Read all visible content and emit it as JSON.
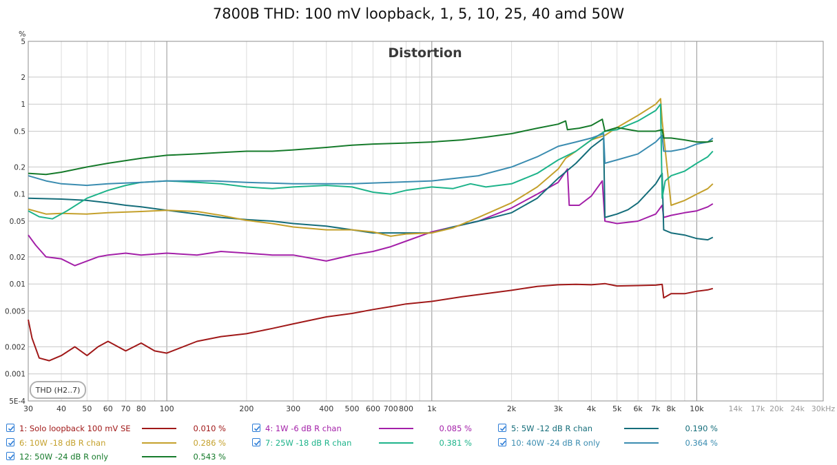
{
  "page": {
    "title": "7800B THD: 100 mV loopback, 1, 5, 10, 25, 40 amd 50W"
  },
  "chart_data": {
    "type": "line",
    "title": "Distortion",
    "y_unit": "%",
    "x_unit": "Hz",
    "x_scale": "log",
    "y_scale": "log",
    "xlim": [
      30,
      30000
    ],
    "ylim": [
      0.0005,
      5
    ],
    "grid": true,
    "x_ticks": [
      {
        "v": 30,
        "label": "30"
      },
      {
        "v": 40,
        "label": "40"
      },
      {
        "v": 50,
        "label": "50"
      },
      {
        "v": 60,
        "label": "60"
      },
      {
        "v": 70,
        "label": "70"
      },
      {
        "v": 80,
        "label": "80"
      },
      {
        "v": 100,
        "label": "100"
      },
      {
        "v": 200,
        "label": "200"
      },
      {
        "v": 300,
        "label": "300"
      },
      {
        "v": 400,
        "label": "400"
      },
      {
        "v": 500,
        "label": "500"
      },
      {
        "v": 600,
        "label": "600"
      },
      {
        "v": 700,
        "label": "700"
      },
      {
        "v": 800,
        "label": "800"
      },
      {
        "v": 1000,
        "label": "1k"
      },
      {
        "v": 2000,
        "label": "2k"
      },
      {
        "v": 3000,
        "label": "3k"
      },
      {
        "v": 4000,
        "label": "4k"
      },
      {
        "v": 5000,
        "label": "5k"
      },
      {
        "v": 6000,
        "label": "6k"
      },
      {
        "v": 7000,
        "label": "7k"
      },
      {
        "v": 8000,
        "label": "8k"
      },
      {
        "v": 10000,
        "label": "10k"
      },
      {
        "v": 14000,
        "label": "14k"
      },
      {
        "v": 17000,
        "label": "17k"
      },
      {
        "v": 20000,
        "label": "20k"
      },
      {
        "v": 24000,
        "label": "24k"
      },
      {
        "v": 30000,
        "label": "30kHz"
      }
    ],
    "y_ticks": [
      {
        "v": 5,
        "label": "5"
      },
      {
        "v": 2,
        "label": "2"
      },
      {
        "v": 1,
        "label": "1"
      },
      {
        "v": 0.5,
        "label": "0.5"
      },
      {
        "v": 0.2,
        "label": "0.2"
      },
      {
        "v": 0.1,
        "label": "0.1"
      },
      {
        "v": 0.05,
        "label": "0.05"
      },
      {
        "v": 0.02,
        "label": "0.02"
      },
      {
        "v": 0.01,
        "label": "0.01"
      },
      {
        "v": 0.005,
        "label": "0.005"
      },
      {
        "v": 0.002,
        "label": "0.002"
      },
      {
        "v": 0.001,
        "label": "0.001"
      },
      {
        "v": 0.0005,
        "label": "5E-4"
      }
    ],
    "badge": "THD (H2..7)",
    "series": [
      {
        "name": "1: Solo loopback 100 mV SE",
        "value": "0.010 %",
        "color": "#a01818",
        "points": [
          [
            30,
            0.004
          ],
          [
            31,
            0.0025
          ],
          [
            33,
            0.0015
          ],
          [
            36,
            0.0014
          ],
          [
            40,
            0.0016
          ],
          [
            45,
            0.002
          ],
          [
            50,
            0.0016
          ],
          [
            55,
            0.002
          ],
          [
            60,
            0.0023
          ],
          [
            70,
            0.0018
          ],
          [
            80,
            0.0022
          ],
          [
            90,
            0.0018
          ],
          [
            100,
            0.0017
          ],
          [
            130,
            0.0023
          ],
          [
            160,
            0.0026
          ],
          [
            200,
            0.0028
          ],
          [
            250,
            0.0032
          ],
          [
            300,
            0.0036
          ],
          [
            400,
            0.0043
          ],
          [
            500,
            0.0047
          ],
          [
            600,
            0.0052
          ],
          [
            700,
            0.0056
          ],
          [
            800,
            0.006
          ],
          [
            1000,
            0.0064
          ],
          [
            1300,
            0.0072
          ],
          [
            1600,
            0.0078
          ],
          [
            2000,
            0.0085
          ],
          [
            2500,
            0.0094
          ],
          [
            3000,
            0.0098
          ],
          [
            3500,
            0.0099
          ],
          [
            4000,
            0.0098
          ],
          [
            4500,
            0.0101
          ],
          [
            5000,
            0.0095
          ],
          [
            6000,
            0.0096
          ],
          [
            7000,
            0.0097
          ],
          [
            7400,
            0.0099
          ],
          [
            7500,
            0.007
          ],
          [
            8000,
            0.0078
          ],
          [
            9000,
            0.0078
          ],
          [
            10000,
            0.0083
          ],
          [
            11000,
            0.0086
          ],
          [
            11500,
            0.0089
          ]
        ]
      },
      {
        "name": "4: 1W -6 dB R chan",
        "value": "0.085 %",
        "color": "#a31fa8",
        "points": [
          [
            30,
            0.035
          ],
          [
            32,
            0.027
          ],
          [
            35,
            0.02
          ],
          [
            40,
            0.019
          ],
          [
            45,
            0.016
          ],
          [
            50,
            0.018
          ],
          [
            55,
            0.02
          ],
          [
            60,
            0.021
          ],
          [
            70,
            0.022
          ],
          [
            80,
            0.021
          ],
          [
            100,
            0.022
          ],
          [
            130,
            0.021
          ],
          [
            160,
            0.023
          ],
          [
            200,
            0.022
          ],
          [
            250,
            0.021
          ],
          [
            300,
            0.021
          ],
          [
            400,
            0.018
          ],
          [
            500,
            0.021
          ],
          [
            600,
            0.023
          ],
          [
            700,
            0.026
          ],
          [
            800,
            0.03
          ],
          [
            1000,
            0.038
          ],
          [
            1200,
            0.043
          ],
          [
            1500,
            0.05
          ],
          [
            2000,
            0.07
          ],
          [
            2500,
            0.1
          ],
          [
            3000,
            0.135
          ],
          [
            3250,
            0.19
          ],
          [
            3300,
            0.075
          ],
          [
            3600,
            0.075
          ],
          [
            4000,
            0.095
          ],
          [
            4400,
            0.14
          ],
          [
            4500,
            0.05
          ],
          [
            5000,
            0.047
          ],
          [
            6000,
            0.05
          ],
          [
            7000,
            0.06
          ],
          [
            7400,
            0.075
          ],
          [
            7500,
            0.055
          ],
          [
            8000,
            0.058
          ],
          [
            9000,
            0.062
          ],
          [
            10000,
            0.065
          ],
          [
            11000,
            0.072
          ],
          [
            11500,
            0.078
          ]
        ]
      },
      {
        "name": "5: 5W -12 dB  R chan",
        "value": "0.190 %",
        "color": "#146d7a",
        "points": [
          [
            30,
            0.09
          ],
          [
            40,
            0.088
          ],
          [
            50,
            0.085
          ],
          [
            60,
            0.08
          ],
          [
            70,
            0.075
          ],
          [
            80,
            0.072
          ],
          [
            100,
            0.066
          ],
          [
            130,
            0.06
          ],
          [
            160,
            0.055
          ],
          [
            200,
            0.052
          ],
          [
            250,
            0.05
          ],
          [
            300,
            0.047
          ],
          [
            400,
            0.044
          ],
          [
            500,
            0.04
          ],
          [
            600,
            0.037
          ],
          [
            800,
            0.037
          ],
          [
            1000,
            0.037
          ],
          [
            1200,
            0.043
          ],
          [
            1500,
            0.05
          ],
          [
            2000,
            0.062
          ],
          [
            2500,
            0.09
          ],
          [
            3000,
            0.15
          ],
          [
            3500,
            0.22
          ],
          [
            4000,
            0.33
          ],
          [
            4450,
            0.42
          ],
          [
            4500,
            0.055
          ],
          [
            5000,
            0.06
          ],
          [
            5500,
            0.067
          ],
          [
            6000,
            0.08
          ],
          [
            7000,
            0.13
          ],
          [
            7400,
            0.17
          ],
          [
            7500,
            0.04
          ],
          [
            8000,
            0.037
          ],
          [
            9000,
            0.035
          ],
          [
            10000,
            0.032
          ],
          [
            11000,
            0.031
          ],
          [
            11500,
            0.033
          ]
        ]
      },
      {
        "name": "6: 10W -18 dB R chan",
        "value": "0.286 %",
        "color": "#c4a02b",
        "points": [
          [
            30,
            0.068
          ],
          [
            35,
            0.06
          ],
          [
            40,
            0.061
          ],
          [
            50,
            0.06
          ],
          [
            60,
            0.062
          ],
          [
            80,
            0.064
          ],
          [
            100,
            0.066
          ],
          [
            130,
            0.064
          ],
          [
            160,
            0.058
          ],
          [
            200,
            0.051
          ],
          [
            250,
            0.047
          ],
          [
            300,
            0.043
          ],
          [
            400,
            0.04
          ],
          [
            500,
            0.04
          ],
          [
            600,
            0.038
          ],
          [
            700,
            0.034
          ],
          [
            800,
            0.036
          ],
          [
            1000,
            0.037
          ],
          [
            1200,
            0.042
          ],
          [
            1500,
            0.055
          ],
          [
            2000,
            0.08
          ],
          [
            2500,
            0.12
          ],
          [
            3000,
            0.19
          ],
          [
            3200,
            0.25
          ],
          [
            3500,
            0.3
          ],
          [
            4000,
            0.4
          ],
          [
            4500,
            0.45
          ],
          [
            5000,
            0.55
          ],
          [
            6000,
            0.75
          ],
          [
            7000,
            1.0
          ],
          [
            7300,
            1.15
          ],
          [
            7400,
            0.65
          ],
          [
            8000,
            0.075
          ],
          [
            9000,
            0.085
          ],
          [
            10000,
            0.1
          ],
          [
            11000,
            0.115
          ],
          [
            11500,
            0.13
          ]
        ]
      },
      {
        "name": "7: 25W -18 dB  R chan",
        "value": "0.381 %",
        "color": "#1db38a",
        "points": [
          [
            30,
            0.065
          ],
          [
            33,
            0.056
          ],
          [
            37,
            0.053
          ],
          [
            42,
            0.065
          ],
          [
            50,
            0.09
          ],
          [
            60,
            0.11
          ],
          [
            70,
            0.125
          ],
          [
            80,
            0.135
          ],
          [
            100,
            0.14
          ],
          [
            130,
            0.135
          ],
          [
            160,
            0.13
          ],
          [
            200,
            0.12
          ],
          [
            250,
            0.115
          ],
          [
            300,
            0.12
          ],
          [
            400,
            0.125
          ],
          [
            500,
            0.12
          ],
          [
            600,
            0.105
          ],
          [
            700,
            0.1
          ],
          [
            800,
            0.11
          ],
          [
            1000,
            0.12
          ],
          [
            1200,
            0.115
          ],
          [
            1400,
            0.13
          ],
          [
            1600,
            0.12
          ],
          [
            2000,
            0.13
          ],
          [
            2500,
            0.17
          ],
          [
            3000,
            0.24
          ],
          [
            3500,
            0.3
          ],
          [
            4000,
            0.4
          ],
          [
            4500,
            0.5
          ],
          [
            5000,
            0.52
          ],
          [
            6000,
            0.65
          ],
          [
            7000,
            0.85
          ],
          [
            7300,
            1.0
          ],
          [
            7400,
            0.09
          ],
          [
            7600,
            0.14
          ],
          [
            8000,
            0.16
          ],
          [
            9000,
            0.18
          ],
          [
            10000,
            0.22
          ],
          [
            11000,
            0.26
          ],
          [
            11500,
            0.3
          ]
        ]
      },
      {
        "name": "10: 40W -24 dB R only",
        "value": "0.364 %",
        "color": "#3a8cb0",
        "points": [
          [
            30,
            0.16
          ],
          [
            35,
            0.14
          ],
          [
            40,
            0.13
          ],
          [
            50,
            0.125
          ],
          [
            60,
            0.13
          ],
          [
            80,
            0.135
          ],
          [
            100,
            0.14
          ],
          [
            150,
            0.14
          ],
          [
            200,
            0.135
          ],
          [
            300,
            0.13
          ],
          [
            500,
            0.13
          ],
          [
            700,
            0.135
          ],
          [
            1000,
            0.14
          ],
          [
            1500,
            0.16
          ],
          [
            2000,
            0.2
          ],
          [
            2500,
            0.26
          ],
          [
            3000,
            0.34
          ],
          [
            3500,
            0.38
          ],
          [
            4000,
            0.42
          ],
          [
            4450,
            0.47
          ],
          [
            4500,
            0.22
          ],
          [
            5000,
            0.24
          ],
          [
            6000,
            0.28
          ],
          [
            7000,
            0.38
          ],
          [
            7400,
            0.45
          ],
          [
            7500,
            0.3
          ],
          [
            8000,
            0.3
          ],
          [
            9000,
            0.32
          ],
          [
            10000,
            0.36
          ],
          [
            11000,
            0.38
          ],
          [
            11500,
            0.42
          ]
        ]
      },
      {
        "name": "12: 50W -24 dB R only",
        "value": "0.543 %",
        "color": "#157a2a",
        "points": [
          [
            30,
            0.17
          ],
          [
            35,
            0.165
          ],
          [
            40,
            0.175
          ],
          [
            50,
            0.2
          ],
          [
            60,
            0.22
          ],
          [
            80,
            0.25
          ],
          [
            100,
            0.27
          ],
          [
            130,
            0.28
          ],
          [
            160,
            0.29
          ],
          [
            200,
            0.3
          ],
          [
            250,
            0.3
          ],
          [
            300,
            0.31
          ],
          [
            400,
            0.33
          ],
          [
            500,
            0.35
          ],
          [
            600,
            0.36
          ],
          [
            800,
            0.37
          ],
          [
            1000,
            0.38
          ],
          [
            1300,
            0.4
          ],
          [
            1600,
            0.43
          ],
          [
            2000,
            0.47
          ],
          [
            2500,
            0.54
          ],
          [
            3000,
            0.6
          ],
          [
            3200,
            0.65
          ],
          [
            3250,
            0.52
          ],
          [
            3600,
            0.54
          ],
          [
            4000,
            0.58
          ],
          [
            4400,
            0.68
          ],
          [
            4500,
            0.5
          ],
          [
            5000,
            0.55
          ],
          [
            6000,
            0.5
          ],
          [
            7000,
            0.5
          ],
          [
            7400,
            0.52
          ],
          [
            7500,
            0.42
          ],
          [
            8000,
            0.42
          ],
          [
            9000,
            0.4
          ],
          [
            10000,
            0.38
          ],
          [
            11000,
            0.38
          ],
          [
            11500,
            0.39
          ]
        ]
      }
    ]
  }
}
